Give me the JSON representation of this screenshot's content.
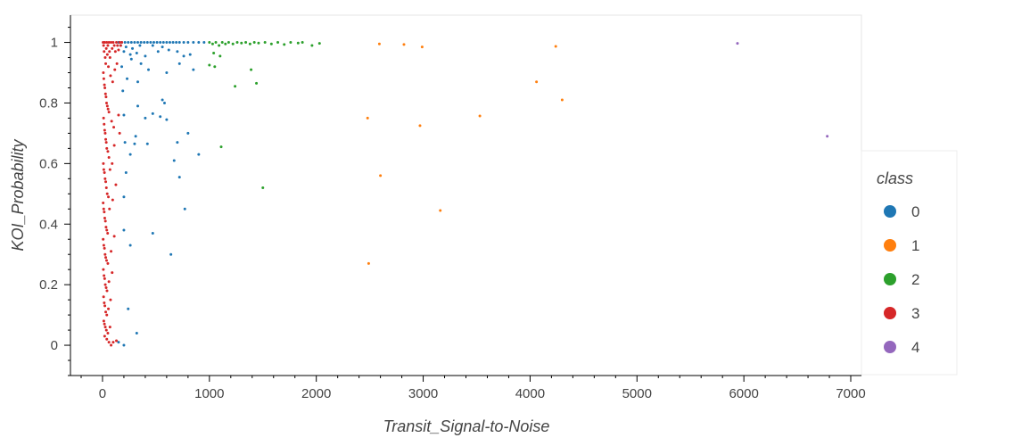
{
  "chart_data": {
    "type": "scatter",
    "title": "",
    "xlabel": "Transit_Signal-to-Noise",
    "ylabel": "KOI_Probability",
    "xlim": [
      -300,
      7100
    ],
    "ylim": [
      -0.1,
      1.09
    ],
    "x_ticks": [
      0,
      1000,
      2000,
      3000,
      4000,
      5000,
      6000,
      7000
    ],
    "y_ticks": [
      0,
      0.2,
      0.4,
      0.6,
      0.8,
      1
    ],
    "x_tick_labels": [
      "0",
      "1000",
      "2000",
      "3000",
      "4000",
      "5000",
      "6000",
      "7000"
    ],
    "y_tick_labels": [
      "0",
      "0.2",
      "0.4",
      "0.6",
      "0.8",
      "1"
    ],
    "grid": false,
    "legend_title": "class",
    "legend_position": "right",
    "series": [
      {
        "name": "0",
        "color": "#1f77b4",
        "points": [
          [
            150,
            1.0
          ],
          [
            180,
            1.0
          ],
          [
            210,
            1.0
          ],
          [
            240,
            1.0
          ],
          [
            270,
            1.0
          ],
          [
            300,
            1.0
          ],
          [
            330,
            1.0
          ],
          [
            360,
            1.0
          ],
          [
            390,
            1.0
          ],
          [
            420,
            1.0
          ],
          [
            450,
            1.0
          ],
          [
            480,
            1.0
          ],
          [
            510,
            1.0
          ],
          [
            540,
            1.0
          ],
          [
            570,
            1.0
          ],
          [
            600,
            1.0
          ],
          [
            630,
            1.0
          ],
          [
            660,
            1.0
          ],
          [
            690,
            1.0
          ],
          [
            720,
            1.0
          ],
          [
            760,
            1.0
          ],
          [
            800,
            1.0
          ],
          [
            850,
            1.0
          ],
          [
            900,
            1.0
          ],
          [
            950,
            1.0
          ],
          [
            170,
            0.99
          ],
          [
            220,
            0.985
          ],
          [
            280,
            0.98
          ],
          [
            350,
            0.99
          ],
          [
            470,
            0.99
          ],
          [
            560,
            0.985
          ],
          [
            200,
            0.97
          ],
          [
            260,
            0.96
          ],
          [
            320,
            0.965
          ],
          [
            400,
            0.955
          ],
          [
            520,
            0.97
          ],
          [
            620,
            0.975
          ],
          [
            700,
            0.97
          ],
          [
            760,
            0.955
          ],
          [
            820,
            0.96
          ],
          [
            270,
            0.945
          ],
          [
            360,
            0.93
          ],
          [
            180,
            0.92
          ],
          [
            850,
            0.91
          ],
          [
            430,
            0.91
          ],
          [
            720,
            0.93
          ],
          [
            600,
            0.9
          ],
          [
            230,
            0.88
          ],
          [
            330,
            0.87
          ],
          [
            190,
            0.84
          ],
          [
            560,
            0.81
          ],
          [
            580,
            0.8
          ],
          [
            330,
            0.79
          ],
          [
            200,
            0.76
          ],
          [
            400,
            0.75
          ],
          [
            470,
            0.765
          ],
          [
            540,
            0.755
          ],
          [
            600,
            0.745
          ],
          [
            800,
            0.7
          ],
          [
            310,
            0.69
          ],
          [
            700,
            0.67
          ],
          [
            210,
            0.67
          ],
          [
            300,
            0.665
          ],
          [
            420,
            0.665
          ],
          [
            260,
            0.63
          ],
          [
            900,
            0.63
          ],
          [
            670,
            0.61
          ],
          [
            220,
            0.57
          ],
          [
            720,
            0.555
          ],
          [
            200,
            0.49
          ],
          [
            770,
            0.45
          ],
          [
            200,
            0.38
          ],
          [
            470,
            0.37
          ],
          [
            260,
            0.33
          ],
          [
            640,
            0.3
          ],
          [
            240,
            0.12
          ],
          [
            320,
            0.04
          ],
          [
            150,
            0.01
          ],
          [
            200,
            0.0
          ]
        ]
      },
      {
        "name": "1",
        "color": "#ff7f0e",
        "points": [
          [
            2590,
            0.995
          ],
          [
            2820,
            0.993
          ],
          [
            2990,
            0.985
          ],
          [
            4240,
            0.987
          ],
          [
            4060,
            0.87
          ],
          [
            4300,
            0.81
          ],
          [
            2480,
            0.75
          ],
          [
            3530,
            0.757
          ],
          [
            2970,
            0.725
          ],
          [
            2600,
            0.56
          ],
          [
            3160,
            0.445
          ],
          [
            2490,
            0.27
          ]
        ]
      },
      {
        "name": "2",
        "color": "#2ca02c",
        "points": [
          [
            1000,
            1.0
          ],
          [
            1030,
            0.995
          ],
          [
            1060,
            1.0
          ],
          [
            1090,
            0.99
          ],
          [
            1120,
            1.0
          ],
          [
            1150,
            0.995
          ],
          [
            1180,
            1.0
          ],
          [
            1220,
            0.995
          ],
          [
            1260,
            1.0
          ],
          [
            1300,
            0.998
          ],
          [
            1340,
            1.0
          ],
          [
            1380,
            0.995
          ],
          [
            1420,
            1.0
          ],
          [
            1460,
            0.998
          ],
          [
            1520,
            1.0
          ],
          [
            1580,
            0.995
          ],
          [
            1640,
            1.0
          ],
          [
            1700,
            0.993
          ],
          [
            1760,
            1.0
          ],
          [
            1830,
            0.998
          ],
          [
            1870,
            1.0
          ],
          [
            1960,
            0.99
          ],
          [
            2030,
            0.997
          ],
          [
            1040,
            0.965
          ],
          [
            1100,
            0.955
          ],
          [
            1000,
            0.925
          ],
          [
            1050,
            0.92
          ],
          [
            1390,
            0.91
          ],
          [
            1240,
            0.855
          ],
          [
            1440,
            0.865
          ],
          [
            1110,
            0.655
          ],
          [
            1500,
            0.52
          ]
        ]
      },
      {
        "name": "3",
        "color": "#d62728",
        "points": [
          [
            5,
            1.0
          ],
          [
            10,
            0.99
          ],
          [
            15,
            0.97
          ],
          [
            20,
            1.0
          ],
          [
            25,
            0.95
          ],
          [
            30,
            0.93
          ],
          [
            35,
            0.98
          ],
          [
            40,
            1.0
          ],
          [
            45,
            0.96
          ],
          [
            50,
            0.99
          ],
          [
            55,
            0.92
          ],
          [
            60,
            1.0
          ],
          [
            65,
            0.97
          ],
          [
            70,
            0.95
          ],
          [
            80,
            1.0
          ],
          [
            90,
            0.98
          ],
          [
            100,
            1.0
          ],
          [
            110,
            0.99
          ],
          [
            120,
            0.97
          ],
          [
            130,
            1.0
          ],
          [
            140,
            0.99
          ],
          [
            150,
            0.975
          ],
          [
            160,
            1.0
          ],
          [
            170,
            0.99
          ],
          [
            180,
            1.0
          ],
          [
            8,
            0.9
          ],
          [
            12,
            0.88
          ],
          [
            18,
            0.86
          ],
          [
            22,
            0.85
          ],
          [
            28,
            0.83
          ],
          [
            33,
            0.82
          ],
          [
            38,
            0.8
          ],
          [
            45,
            0.79
          ],
          [
            52,
            0.78
          ],
          [
            60,
            0.77
          ],
          [
            75,
            0.89
          ],
          [
            95,
            0.87
          ],
          [
            115,
            0.91
          ],
          [
            135,
            0.93
          ],
          [
            10,
            0.75
          ],
          [
            15,
            0.73
          ],
          [
            20,
            0.71
          ],
          [
            25,
            0.7
          ],
          [
            30,
            0.68
          ],
          [
            35,
            0.67
          ],
          [
            40,
            0.65
          ],
          [
            50,
            0.64
          ],
          [
            60,
            0.62
          ],
          [
            85,
            0.74
          ],
          [
            105,
            0.72
          ],
          [
            150,
            0.76
          ],
          [
            8,
            0.6
          ],
          [
            12,
            0.58
          ],
          [
            18,
            0.57
          ],
          [
            24,
            0.55
          ],
          [
            30,
            0.54
          ],
          [
            36,
            0.52
          ],
          [
            44,
            0.5
          ],
          [
            55,
            0.49
          ],
          [
            70,
            0.58
          ],
          [
            90,
            0.6
          ],
          [
            110,
            0.66
          ],
          [
            160,
            0.7
          ],
          [
            6,
            0.47
          ],
          [
            11,
            0.45
          ],
          [
            16,
            0.44
          ],
          [
            21,
            0.42
          ],
          [
            27,
            0.41
          ],
          [
            33,
            0.39
          ],
          [
            40,
            0.38
          ],
          [
            48,
            0.37
          ],
          [
            65,
            0.45
          ],
          [
            95,
            0.48
          ],
          [
            125,
            0.53
          ],
          [
            6,
            0.35
          ],
          [
            12,
            0.33
          ],
          [
            18,
            0.32
          ],
          [
            24,
            0.3
          ],
          [
            30,
            0.29
          ],
          [
            38,
            0.28
          ],
          [
            50,
            0.27
          ],
          [
            80,
            0.31
          ],
          [
            110,
            0.36
          ],
          [
            8,
            0.25
          ],
          [
            14,
            0.23
          ],
          [
            20,
            0.22
          ],
          [
            26,
            0.2
          ],
          [
            34,
            0.19
          ],
          [
            42,
            0.18
          ],
          [
            60,
            0.21
          ],
          [
            90,
            0.24
          ],
          [
            10,
            0.16
          ],
          [
            16,
            0.14
          ],
          [
            22,
            0.13
          ],
          [
            30,
            0.11
          ],
          [
            40,
            0.1
          ],
          [
            55,
            0.12
          ],
          [
            75,
            0.15
          ],
          [
            12,
            0.08
          ],
          [
            18,
            0.07
          ],
          [
            26,
            0.06
          ],
          [
            36,
            0.05
          ],
          [
            50,
            0.04
          ],
          [
            70,
            0.06
          ],
          [
            20,
            0.03
          ],
          [
            40,
            0.02
          ],
          [
            60,
            0.01
          ],
          [
            80,
            0.0
          ],
          [
            100,
            0.01
          ],
          [
            130,
            0.015
          ]
        ]
      },
      {
        "name": "4",
        "color": "#9467bd",
        "points": [
          [
            5940,
            0.997
          ],
          [
            6780,
            0.69
          ]
        ]
      }
    ]
  }
}
